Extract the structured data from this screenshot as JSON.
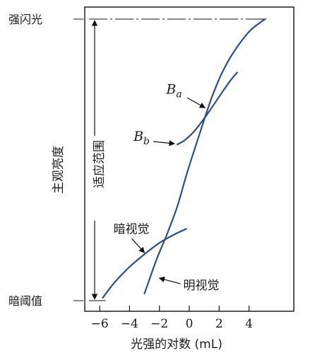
{
  "chart_data": {
    "type": "line",
    "title": "",
    "xlabel": "光强的对数 (mL)",
    "ylabel": "主观亮度",
    "xlim": [
      -7,
      7
    ],
    "ylim": [
      0,
      10
    ],
    "xticks": [
      -6,
      -4,
      -2,
      0,
      2,
      4
    ],
    "xtick_labels": [
      "−6",
      "−4",
      "−2",
      "0",
      "2",
      "4"
    ],
    "ytick_labels": [
      {
        "label": "强闪光",
        "y": 10
      },
      {
        "label": "暗阈值",
        "y": 0
      }
    ],
    "range_label": "适应范围",
    "range_y": [
      0,
      10
    ],
    "grid": false,
    "series": [
      {
        "name": "明视觉",
        "x": [
          -3.0,
          -2.2,
          -1.5,
          -0.8,
          -0.2,
          0.4,
          0.8,
          1.2,
          1.6,
          2.2,
          3.0,
          4.0,
          4.8,
          5.1
        ],
        "y": [
          0.25,
          1.45,
          2.35,
          3.35,
          4.45,
          5.45,
          6.1,
          6.75,
          7.35,
          8.1,
          8.85,
          9.55,
          9.9,
          10.0
        ]
      },
      {
        "name": "暗视觉",
        "x": [
          -5.8,
          -5.0,
          -4.0,
          -3.0,
          -2.0,
          -1.0,
          -0.2
        ],
        "y": [
          0.1,
          0.65,
          1.2,
          1.65,
          2.05,
          2.35,
          2.55
        ]
      },
      {
        "name": "Ba-Bb",
        "x": [
          -0.8,
          -0.3,
          0.3,
          0.9,
          1.5,
          2.2,
          2.8,
          3.2
        ],
        "y": [
          5.55,
          5.7,
          6.0,
          6.4,
          6.85,
          7.4,
          7.85,
          8.1
        ]
      }
    ],
    "annotations": [
      {
        "text": "B",
        "sub": "a",
        "x": 1.2,
        "y": 6.75
      },
      {
        "text": "B",
        "sub": "b",
        "x": -0.8,
        "y": 5.55
      },
      {
        "text": "暗视觉",
        "x": -3.0,
        "y": 1.65
      },
      {
        "text": "明视觉",
        "x": -2.2,
        "y": 0.75
      }
    ]
  }
}
